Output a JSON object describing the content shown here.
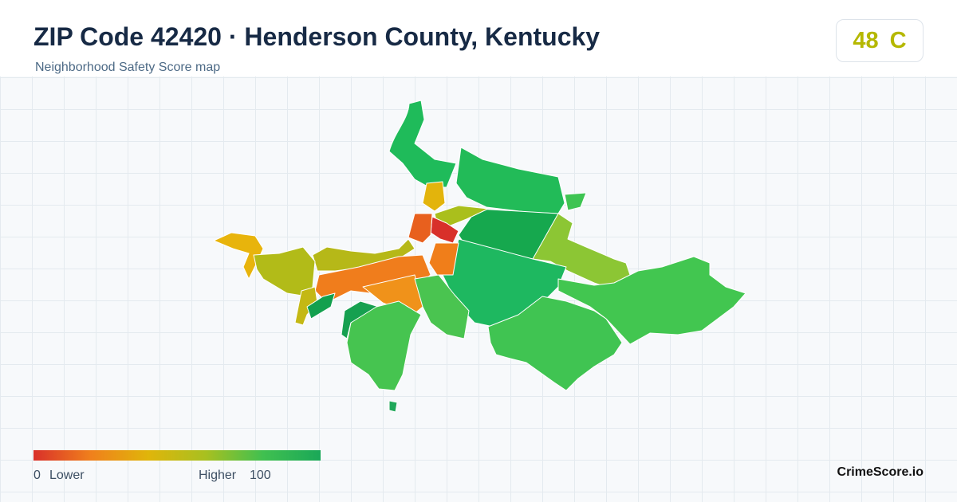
{
  "header": {
    "title": "ZIP Code 42420 · Henderson County, Kentucky",
    "subtitle": "Neighborhood Safety Score map"
  },
  "score": {
    "value": 48,
    "grade": "C"
  },
  "legend": {
    "min": 0,
    "min_label": "Lower",
    "max_label": "Higher",
    "max": 100
  },
  "brand": "CrimeScore.io"
}
